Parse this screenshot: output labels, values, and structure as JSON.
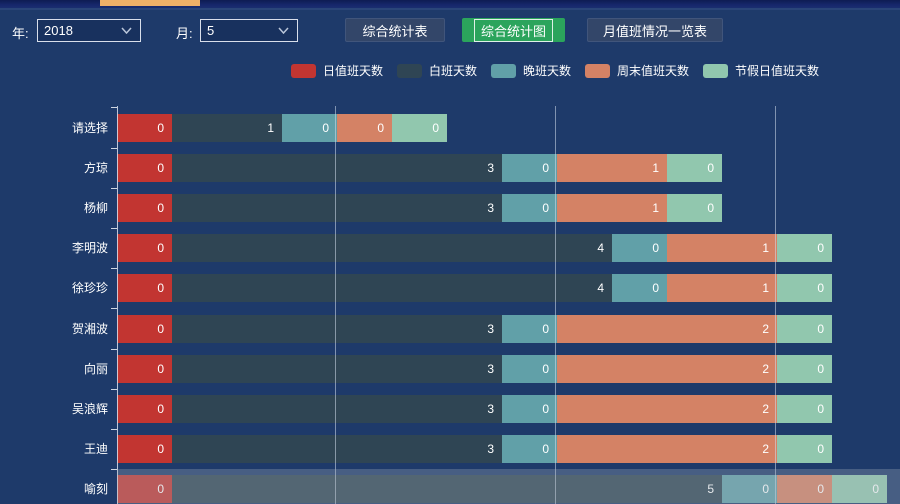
{
  "window": {
    "active_tab_indicator_color": "#f0b168"
  },
  "toolbar": {
    "year_label": "年:",
    "year_value": "2018",
    "month_label": "月:",
    "month_value": "5",
    "buttons": [
      {
        "label": "综合统计表",
        "variant": "plain"
      },
      {
        "label": "综合统计图",
        "variant": "green-active"
      },
      {
        "label": "月值班情况一览表",
        "variant": "plain"
      }
    ]
  },
  "icons": {
    "chevron_down": "chevron-down"
  },
  "chart_data": {
    "type": "bar",
    "orientation": "horizontal",
    "stacked": true,
    "grid": true,
    "legend_position": "top",
    "xlim": [
      0,
      8
    ],
    "x_tick_interval": 2,
    "categories": [
      "请选择",
      "方琼",
      "杨柳",
      "李明波",
      "徐珍珍",
      "贺湘波",
      "向丽",
      "吴浪辉",
      "王迪",
      "喻刻"
    ],
    "series": [
      {
        "name": "日值班天数",
        "color": "#c23531",
        "values": [
          0,
          0,
          0,
          0,
          0,
          0,
          0,
          0,
          0,
          0
        ]
      },
      {
        "name": "白班天数",
        "color": "#2f4554",
        "values": [
          1,
          3,
          3,
          4,
          4,
          3,
          3,
          3,
          3,
          5
        ]
      },
      {
        "name": "晚班天数",
        "color": "#61a0a8",
        "values": [
          0,
          0,
          0,
          0,
          0,
          0,
          0,
          0,
          0,
          0
        ]
      },
      {
        "name": "周末值班天数",
        "color": "#d48265",
        "values": [
          0,
          1,
          1,
          1,
          1,
          2,
          2,
          2,
          2,
          0
        ]
      },
      {
        "name": "节假日值班天数",
        "color": "#91c7ae",
        "values": [
          0,
          0,
          0,
          0,
          0,
          0,
          0,
          0,
          0,
          0
        ]
      }
    ],
    "highlighted_category": "喻刻"
  }
}
